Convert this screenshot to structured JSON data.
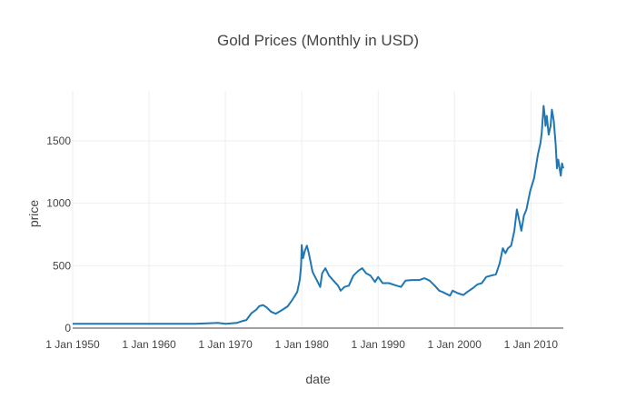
{
  "chart_data": {
    "type": "line",
    "title": "Gold Prices (Monthly in USD)",
    "xlabel": "date",
    "ylabel": "price",
    "xlim": [
      "1950-01-01",
      "2014-04-01"
    ],
    "ylim": [
      0,
      1900
    ],
    "x_ticks": [
      {
        "date": "1950-01-01",
        "label": "1 Jan 1950"
      },
      {
        "date": "1960-01-01",
        "label": "1 Jan 1960"
      },
      {
        "date": "1970-01-01",
        "label": "1 Jan 1970"
      },
      {
        "date": "1980-01-01",
        "label": "1 Jan 1980"
      },
      {
        "date": "1990-01-01",
        "label": "1 Jan 1990"
      },
      {
        "date": "2000-01-01",
        "label": "1 Jan 2000"
      },
      {
        "date": "2010-01-01",
        "label": "1 Jan 2010"
      }
    ],
    "y_ticks": [
      0,
      500,
      1000,
      1500
    ],
    "grid": true,
    "color": "#1f77b4",
    "series": [
      {
        "x": [
          "1950-01-01",
          "1952-01-01",
          "1954-01-01",
          "1956-01-01",
          "1958-01-01",
          "1960-01-01",
          "1962-01-01",
          "1964-01-01",
          "1966-01-01",
          "1968-01-01",
          "1969-01-01",
          "1970-01-01",
          "1971-06-01",
          "1972-03-01",
          "1972-10-01",
          "1973-06-01",
          "1974-02-01",
          "1974-06-01",
          "1974-12-01",
          "1975-06-01",
          "1976-01-01",
          "1976-08-01",
          "1977-06-01",
          "1978-03-01",
          "1978-10-01",
          "1979-06-01",
          "1979-10-01",
          "1979-12-01",
          "1980-01-01",
          "1980-03-01",
          "1980-06-01",
          "1980-09-01",
          "1980-12-01",
          "1981-06-01",
          "1982-01-01",
          "1982-06-01",
          "1982-09-01",
          "1983-02-01",
          "1983-08-01",
          "1984-03-01",
          "1984-10-01",
          "1985-02-01",
          "1985-08-01",
          "1986-03-01",
          "1986-10-01",
          "1987-06-01",
          "1987-12-01",
          "1988-06-01",
          "1989-01-01",
          "1989-08-01",
          "1990-01-01",
          "1990-08-01",
          "1991-06-01",
          "1992-06-01",
          "1993-01-01",
          "1993-08-01",
          "1994-06-01",
          "1995-06-01",
          "1996-02-01",
          "1996-10-01",
          "1997-06-01",
          "1998-01-01",
          "1998-06-01",
          "1999-06-01",
          "1999-10-01",
          "2000-06-01",
          "2001-03-01",
          "2001-09-01",
          "2002-06-01",
          "2003-01-01",
          "2003-08-01",
          "2004-03-01",
          "2004-10-01",
          "2005-06-01",
          "2005-12-01",
          "2006-05-01",
          "2006-09-01",
          "2007-01-01",
          "2007-06-01",
          "2007-11-01",
          "2008-03-01",
          "2008-06-01",
          "2008-10-01",
          "2009-02-01",
          "2009-06-01",
          "2009-12-01",
          "2010-06-01",
          "2010-12-01",
          "2011-04-01",
          "2011-06-01",
          "2011-09-01",
          "2011-11-01",
          "2011-12-01",
          "2012-02-01",
          "2012-05-01",
          "2012-08-01",
          "2012-10-01",
          "2013-01-01",
          "2013-04-01",
          "2013-06-01",
          "2013-08-01",
          "2013-12-01",
          "2014-02-01",
          "2014-04-01"
        ],
        "y": [
          35,
          35,
          35,
          35,
          35,
          35,
          35,
          35,
          35,
          39,
          42,
          35,
          41,
          55,
          65,
          120,
          150,
          175,
          185,
          165,
          130,
          115,
          145,
          175,
          225,
          290,
          390,
          500,
          665,
          560,
          620,
          660,
          600,
          450,
          380,
          330,
          440,
          480,
          420,
          380,
          340,
          300,
          330,
          340,
          420,
          460,
          480,
          440,
          420,
          370,
          410,
          360,
          360,
          340,
          330,
          380,
          385,
          385,
          400,
          380,
          340,
          300,
          290,
          260,
          300,
          280,
          265,
          290,
          320,
          350,
          360,
          410,
          420,
          430,
          520,
          640,
          600,
          640,
          660,
          780,
          950,
          880,
          780,
          900,
          950,
          1100,
          1200,
          1390,
          1480,
          1560,
          1780,
          1690,
          1620,
          1700,
          1550,
          1620,
          1750,
          1660,
          1470,
          1280,
          1350,
          1220,
          1320,
          1280
        ]
      }
    ]
  }
}
